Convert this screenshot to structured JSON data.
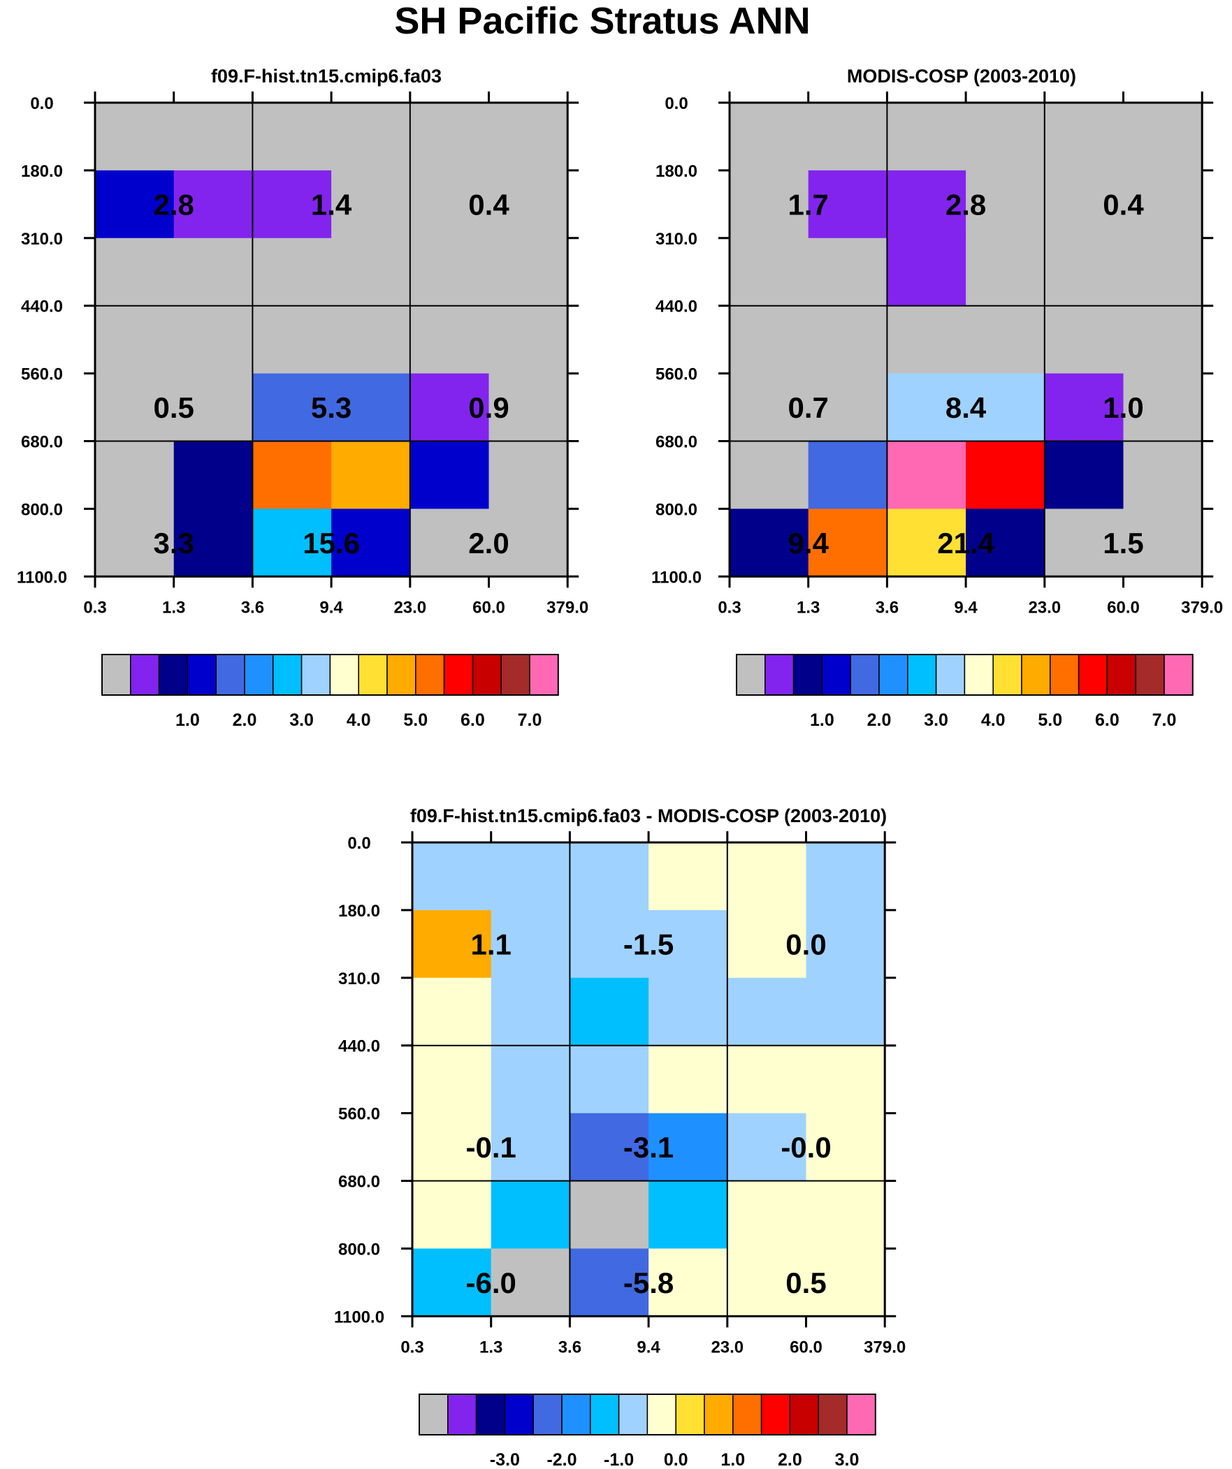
{
  "figure": {
    "title": "SH Pacific Stratus ANN"
  },
  "colors": {
    "model_obs_palette": [
      "#c0c0c0",
      "#8224ee",
      "#00008b",
      "#0000cd",
      "#4169e1",
      "#1e90ff",
      "#00bfff",
      "#a0d2ff",
      "#ffffd0",
      "#ffe033",
      "#ffab00",
      "#ff6f00",
      "#ff0000",
      "#c80000",
      "#a52a2a",
      "#ff69b4"
    ],
    "diff_palette": [
      "#c0c0c0",
      "#8224ee",
      "#00008b",
      "#0000cd",
      "#4169e1",
      "#1e90ff",
      "#00bfff",
      "#a0d2ff",
      "#ffffd0",
      "#ffe033",
      "#ffab00",
      "#ff6f00",
      "#ff0000",
      "#c80000",
      "#a52a2a",
      "#ff69b4"
    ]
  },
  "chart_data": [
    {
      "type": "heatmap",
      "title": "f09.F-hist.tn15.cmip6.fa03",
      "x_ticks": [
        "0.3",
        "1.3",
        "3.6",
        "9.4",
        "23.0",
        "60.0",
        "379.0"
      ],
      "y_ticks": [
        "0.0",
        "180.0",
        "310.0",
        "440.0",
        "560.0",
        "680.0",
        "800.0",
        "1100.0"
      ],
      "cells": [
        [
          0,
          0,
          0,
          0,
          0,
          0
        ],
        [
          3,
          1,
          1,
          0,
          0,
          0
        ],
        [
          0,
          0,
          0,
          0,
          0,
          0
        ],
        [
          0,
          0,
          0,
          0,
          0,
          0
        ],
        [
          0,
          0,
          4,
          4,
          1,
          0
        ],
        [
          0,
          2,
          11,
          10,
          3,
          0
        ],
        [
          0,
          2,
          6,
          3,
          0,
          0
        ]
      ],
      "box_labels": [
        [
          "2.8",
          "1.4",
          "0.4"
        ],
        [
          "0.5",
          "5.3",
          "0.9"
        ],
        [
          "3.3",
          "15.6",
          "2.0"
        ]
      ],
      "colorbar": {
        "labels": [
          "1.0",
          "2.0",
          "3.0",
          "4.0",
          "5.0",
          "6.0",
          "7.0"
        ]
      }
    },
    {
      "type": "heatmap",
      "title": "MODIS-COSP (2003-2010)",
      "x_ticks": [
        "0.3",
        "1.3",
        "3.6",
        "9.4",
        "23.0",
        "60.0",
        "379.0"
      ],
      "y_ticks": [
        "0.0",
        "180.0",
        "310.0",
        "440.0",
        "560.0",
        "680.0",
        "800.0",
        "1100.0"
      ],
      "cells": [
        [
          0,
          0,
          0,
          0,
          0,
          0
        ],
        [
          0,
          1,
          1,
          0,
          0,
          0
        ],
        [
          0,
          0,
          1,
          0,
          0,
          0
        ],
        [
          0,
          0,
          0,
          0,
          0,
          0
        ],
        [
          0,
          0,
          7,
          7,
          1,
          0
        ],
        [
          0,
          4,
          15,
          12,
          2,
          0
        ],
        [
          2,
          11,
          9,
          2,
          0,
          0
        ]
      ],
      "box_labels": [
        [
          "1.7",
          "2.8",
          "0.4"
        ],
        [
          "0.7",
          "8.4",
          "1.0"
        ],
        [
          "9.4",
          "21.4",
          "1.5"
        ]
      ],
      "colorbar": {
        "labels": [
          "1.0",
          "2.0",
          "3.0",
          "4.0",
          "5.0",
          "6.0",
          "7.0"
        ]
      }
    },
    {
      "type": "heatmap",
      "title": "f09.F-hist.tn15.cmip6.fa03 - MODIS-COSP (2003-2010)",
      "x_ticks": [
        "0.3",
        "1.3",
        "3.6",
        "9.4",
        "23.0",
        "60.0",
        "379.0"
      ],
      "y_ticks": [
        "0.0",
        "180.0",
        "310.0",
        "440.0",
        "560.0",
        "680.0",
        "800.0",
        "1100.0"
      ],
      "cells": [
        [
          7,
          7,
          7,
          8,
          8,
          7
        ],
        [
          10,
          7,
          7,
          7,
          8,
          7
        ],
        [
          8,
          7,
          6,
          7,
          7,
          7
        ],
        [
          8,
          7,
          7,
          8,
          8,
          8
        ],
        [
          8,
          7,
          4,
          5,
          7,
          8
        ],
        [
          8,
          6,
          0,
          6,
          8,
          8
        ],
        [
          6,
          0,
          4,
          8,
          8,
          8
        ]
      ],
      "box_labels": [
        [
          "1.1",
          "-1.5",
          "0.0"
        ],
        [
          "-0.1",
          "-3.1",
          "-0.0"
        ],
        [
          "-6.0",
          "-5.8",
          "0.5"
        ]
      ],
      "colorbar": {
        "labels": [
          "-3.0",
          "-2.0",
          "-1.0",
          "0.0",
          "1.0",
          "2.0",
          "3.0"
        ]
      }
    }
  ]
}
